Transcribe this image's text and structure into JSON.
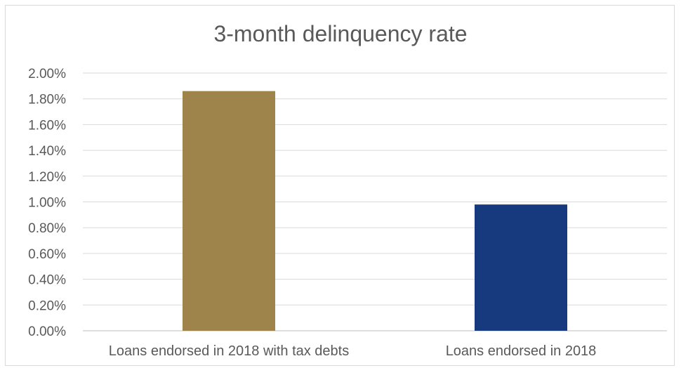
{
  "chart_data": {
    "type": "bar",
    "title": "3-month delinquency rate",
    "categories": [
      "Loans endorsed in 2018 with tax debts",
      "Loans endorsed in 2018"
    ],
    "values": [
      0.0186,
      0.0098
    ],
    "colors": [
      "#9e844a",
      "#173a7e"
    ],
    "y_ticks": [
      "0.00%",
      "0.20%",
      "0.40%",
      "0.60%",
      "0.80%",
      "1.00%",
      "1.20%",
      "1.40%",
      "1.60%",
      "1.80%",
      "2.00%"
    ],
    "ylim": [
      0,
      0.02
    ],
    "grid": true,
    "legend": "none"
  }
}
